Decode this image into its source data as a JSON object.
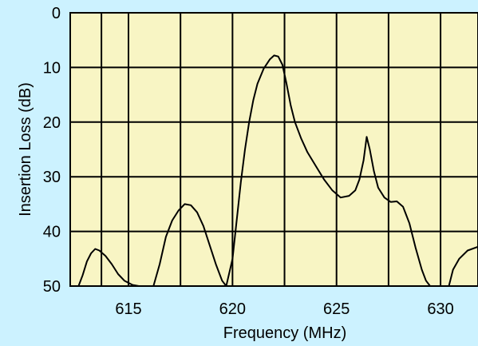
{
  "chart_data": {
    "type": "line",
    "title": "",
    "xlabel": "Frequency (MHz)",
    "ylabel": "Insertion Loss (dB)",
    "xlim": [
      612.2,
      631.8
    ],
    "ylim": [
      0,
      50
    ],
    "y_inverted": true,
    "grid": true,
    "xticks": [
      {
        "value": 615,
        "label": "615"
      },
      {
        "value": 620,
        "label": "620"
      },
      {
        "value": 625,
        "label": "625"
      },
      {
        "value": 630,
        "label": "630"
      }
    ],
    "yticks": [
      {
        "value": 0,
        "label": "0"
      },
      {
        "value": 10,
        "label": "10"
      },
      {
        "value": 20,
        "label": "20"
      },
      {
        "value": 30,
        "label": "30"
      },
      {
        "value": 40,
        "label": "40"
      },
      {
        "value": 50,
        "label": "50"
      }
    ],
    "x_gridlines": [
      613.7,
      615.0,
      617.5,
      620.0,
      622.5,
      625.0,
      627.5,
      630.0
    ],
    "series": [
      {
        "name": "",
        "segments": [
          [
            [
              612.6,
              50
            ],
            [
              612.8,
              48
            ],
            [
              613.0,
              45.5
            ],
            [
              613.2,
              44
            ],
            [
              613.4,
              43.2
            ],
            [
              613.6,
              43.5
            ],
            [
              613.9,
              44.5
            ],
            [
              614.2,
              46
            ],
            [
              614.5,
              47.8
            ],
            [
              614.8,
              49
            ],
            [
              615.2,
              49.8
            ],
            [
              615.5,
              50
            ]
          ],
          [
            [
              616.2,
              50
            ],
            [
              616.5,
              46
            ],
            [
              616.8,
              41
            ],
            [
              617.1,
              38
            ],
            [
              617.4,
              36.2
            ],
            [
              617.7,
              35
            ],
            [
              618.0,
              35.2
            ],
            [
              618.3,
              36.5
            ],
            [
              618.6,
              39
            ],
            [
              618.9,
              42.5
            ],
            [
              619.2,
              46
            ],
            [
              619.5,
              49
            ],
            [
              619.7,
              50
            ]
          ],
          [
            [
              619.7,
              50
            ],
            [
              620.0,
              45
            ],
            [
              620.2,
              38
            ],
            [
              620.4,
              31
            ],
            [
              620.6,
              25
            ],
            [
              620.8,
              20
            ],
            [
              621.0,
              16
            ],
            [
              621.2,
              13
            ],
            [
              621.5,
              10.2
            ],
            [
              621.8,
              8.5
            ],
            [
              622.0,
              7.8
            ],
            [
              622.2,
              8.0
            ],
            [
              622.4,
              9.5
            ],
            [
              622.6,
              13
            ],
            [
              622.8,
              17
            ],
            [
              623.0,
              20
            ],
            [
              623.3,
              23
            ],
            [
              623.6,
              25.5
            ],
            [
              624.0,
              28
            ],
            [
              624.4,
              30.5
            ],
            [
              624.8,
              32.5
            ],
            [
              625.2,
              33.8
            ],
            [
              625.6,
              33.5
            ],
            [
              625.9,
              32.5
            ],
            [
              626.1,
              30.5
            ],
            [
              626.3,
              27
            ],
            [
              626.45,
              22.7
            ],
            [
              626.6,
              25
            ],
            [
              626.8,
              29
            ],
            [
              627.0,
              32
            ],
            [
              627.3,
              33.8
            ],
            [
              627.6,
              34.6
            ],
            [
              627.9,
              34.5
            ],
            [
              628.2,
              35.5
            ],
            [
              628.5,
              38.5
            ],
            [
              628.8,
              43
            ],
            [
              629.1,
              47
            ],
            [
              629.3,
              49
            ],
            [
              629.5,
              50
            ]
          ],
          [
            [
              630.4,
              50
            ],
            [
              630.6,
              47
            ],
            [
              630.9,
              45
            ],
            [
              631.3,
              43.5
            ],
            [
              631.8,
              42.8
            ]
          ]
        ]
      }
    ]
  }
}
